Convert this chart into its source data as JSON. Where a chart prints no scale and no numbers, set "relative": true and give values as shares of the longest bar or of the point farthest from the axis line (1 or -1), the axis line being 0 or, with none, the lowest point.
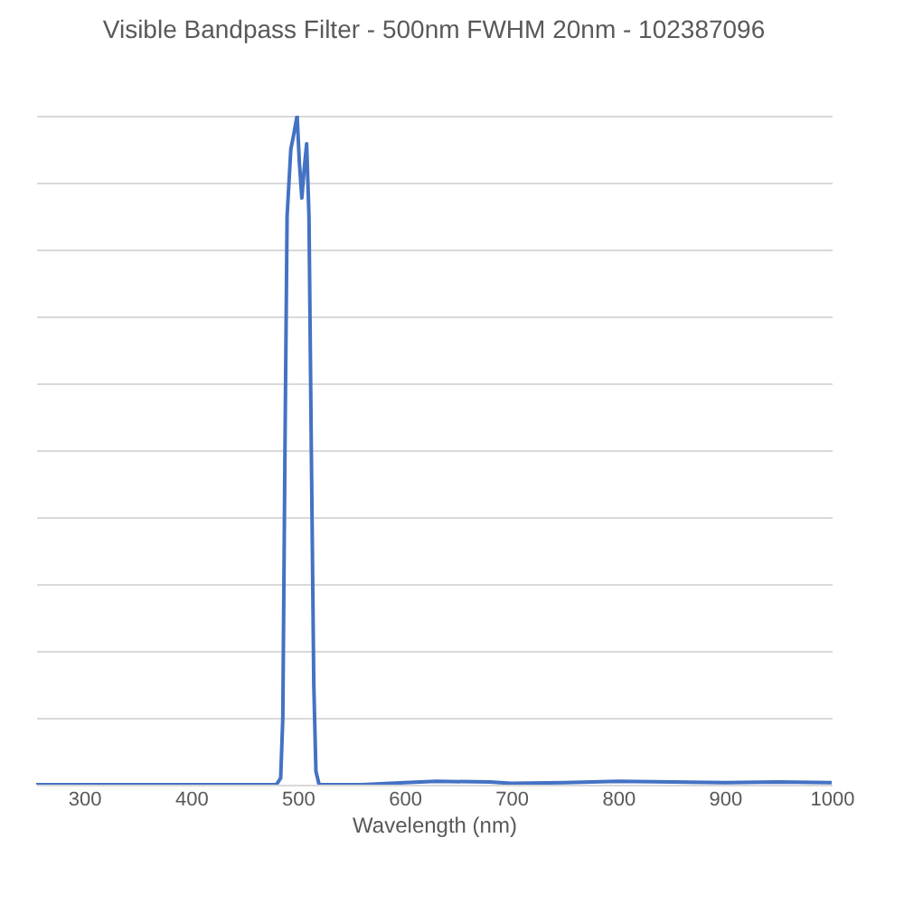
{
  "chart_data": {
    "type": "line",
    "title": "Visible Bandpass Filter - 500nm FWHM 20nm - 102387096",
    "xlabel": "Wavelength (nm)",
    "relative": true,
    "xlim": [
      255,
      1000
    ],
    "xticks": [
      300,
      400,
      500,
      600,
      700,
      800,
      900,
      1000
    ],
    "grid": "y",
    "legend": false,
    "marker": "none",
    "line_style": "solid",
    "series": [
      {
        "color": "#4472c4",
        "x": [
          255,
          300,
          400,
          470,
          480,
          484,
          486,
          488,
          490,
          493.5,
          496,
          499.4,
          501.5,
          503.8,
          506,
          508.3,
          510.5,
          512.7,
          515,
          517,
          520,
          530,
          560,
          600,
          630,
          680,
          700,
          750,
          800,
          850,
          900,
          950,
          1000
        ],
        "values": [
          0,
          0,
          0,
          0,
          0,
          0.01,
          0.1,
          0.5,
          0.85,
          0.95,
          0.97,
          1,
          0.93,
          0.877,
          0.92,
          0.958,
          0.85,
          0.5,
          0.15,
          0.02,
          0,
          0,
          0,
          0.003,
          0.005,
          0.004,
          0.002,
          0.003,
          0.005,
          0.004,
          0.003,
          0.004,
          0.003
        ]
      }
    ]
  }
}
